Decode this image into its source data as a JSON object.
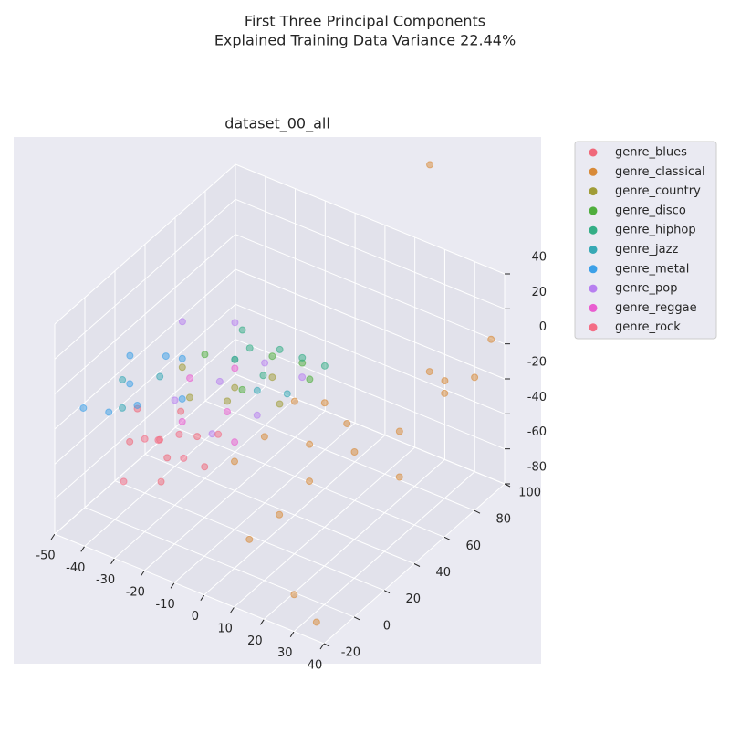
{
  "chart_data": {
    "type": "scatter3d",
    "title": "First Three Principal Components",
    "subtitle": "Explained Training Data Variance 22.44%",
    "axes_title": "dataset_00_all",
    "xlim": [
      -50,
      40
    ],
    "xticks": [
      -50,
      -40,
      -30,
      -20,
      -10,
      0,
      10,
      20,
      30,
      40
    ],
    "ylim": [
      -20,
      100
    ],
    "yticks": [
      -20,
      0,
      20,
      40,
      60,
      80,
      100
    ],
    "zlim": [
      -80,
      40
    ],
    "zticks": [
      -80,
      -60,
      -40,
      -20,
      0,
      20,
      40
    ],
    "grid": true,
    "legend": "outside-upper-right",
    "series": [
      {
        "name": "genre_blues",
        "color": "#f0687a",
        "x": [
          -30,
          -25,
          -20,
          -35,
          -15,
          -28,
          -22,
          -40
        ],
        "y": [
          10,
          5,
          15,
          0,
          10,
          20,
          -5,
          15
        ],
        "z": [
          -35,
          -38,
          -30,
          -32,
          -40,
          -25,
          -42,
          -28
        ]
      },
      {
        "name": "genre_classical",
        "color": "#d88a38",
        "x": [
          0,
          10,
          20,
          5,
          15,
          25,
          30,
          35,
          20,
          30,
          10,
          38,
          15,
          5,
          25,
          35,
          30,
          20,
          0,
          -5
        ],
        "y": [
          20,
          30,
          40,
          50,
          20,
          60,
          80,
          90,
          100,
          50,
          10,
          95,
          100,
          0,
          -10,
          -15,
          70,
          35,
          40,
          10
        ],
        "z": [
          -20,
          -25,
          -30,
          -20,
          -35,
          -30,
          -20,
          -15,
          -35,
          -45,
          -50,
          5,
          85,
          -60,
          -70,
          -75,
          0,
          -10,
          -15,
          -30
        ]
      },
      {
        "name": "genre_country",
        "color": "#a09c37",
        "x": [
          -25,
          -15,
          -5,
          -30,
          -10,
          -20
        ],
        "y": [
          20,
          30,
          40,
          25,
          45,
          35
        ],
        "z": [
          -15,
          -10,
          -20,
          -5,
          -12,
          -25
        ]
      },
      {
        "name": "genre_disco",
        "color": "#4fae3d",
        "x": [
          -20,
          -10,
          -5,
          -25,
          0,
          -15
        ],
        "y": [
          40,
          45,
          55,
          30,
          50,
          35
        ],
        "z": [
          -5,
          0,
          -8,
          2,
          -10,
          -15
        ]
      },
      {
        "name": "genre_hiphop",
        "color": "#34ae86",
        "x": [
          -10,
          -5,
          -15,
          0,
          -20,
          -8
        ],
        "y": [
          50,
          55,
          40,
          60,
          45,
          35
        ],
        "z": [
          0,
          -5,
          5,
          -10,
          8,
          -2
        ]
      },
      {
        "name": "genre_jazz",
        "color": "#37a9b5",
        "x": [
          -45,
          -35,
          -20,
          -10,
          -40,
          -5
        ],
        "y": [
          15,
          20,
          40,
          35,
          5,
          45
        ],
        "z": [
          -15,
          -10,
          -5,
          -12,
          -20,
          -18
        ]
      },
      {
        "name": "genre_metal",
        "color": "#3ca0e8",
        "x": [
          -40,
          -45,
          -35,
          -30,
          -42,
          -38,
          -25,
          -48
        ],
        "y": [
          10,
          20,
          5,
          25,
          0,
          30,
          15,
          -5
        ],
        "z": [
          -10,
          -5,
          -15,
          0,
          -20,
          -8,
          -12,
          -18
        ]
      },
      {
        "name": "genre_pop",
        "color": "#b77ff0",
        "x": [
          -30,
          -20,
          -10,
          -25,
          -5,
          -15,
          -35,
          0
        ],
        "y": [
          20,
          30,
          40,
          50,
          25,
          15,
          35,
          45
        ],
        "z": [
          -20,
          -10,
          0,
          5,
          -15,
          -25,
          10,
          -5
        ]
      },
      {
        "name": "genre_reggae",
        "color": "#e95dd0",
        "x": [
          -25,
          -15,
          -30,
          -20,
          -10
        ],
        "y": [
          15,
          25,
          30,
          40,
          20
        ],
        "z": [
          -25,
          -20,
          -15,
          -10,
          -30
        ]
      },
      {
        "name": "genre_rock",
        "color": "#f46d85",
        "x": [
          -32,
          -18,
          -28,
          -22,
          -35,
          -26
        ],
        "y": [
          -10,
          25,
          5,
          10,
          10,
          15
        ],
        "z": [
          -45,
          -35,
          -30,
          -40,
          -38,
          -33
        ]
      }
    ]
  }
}
